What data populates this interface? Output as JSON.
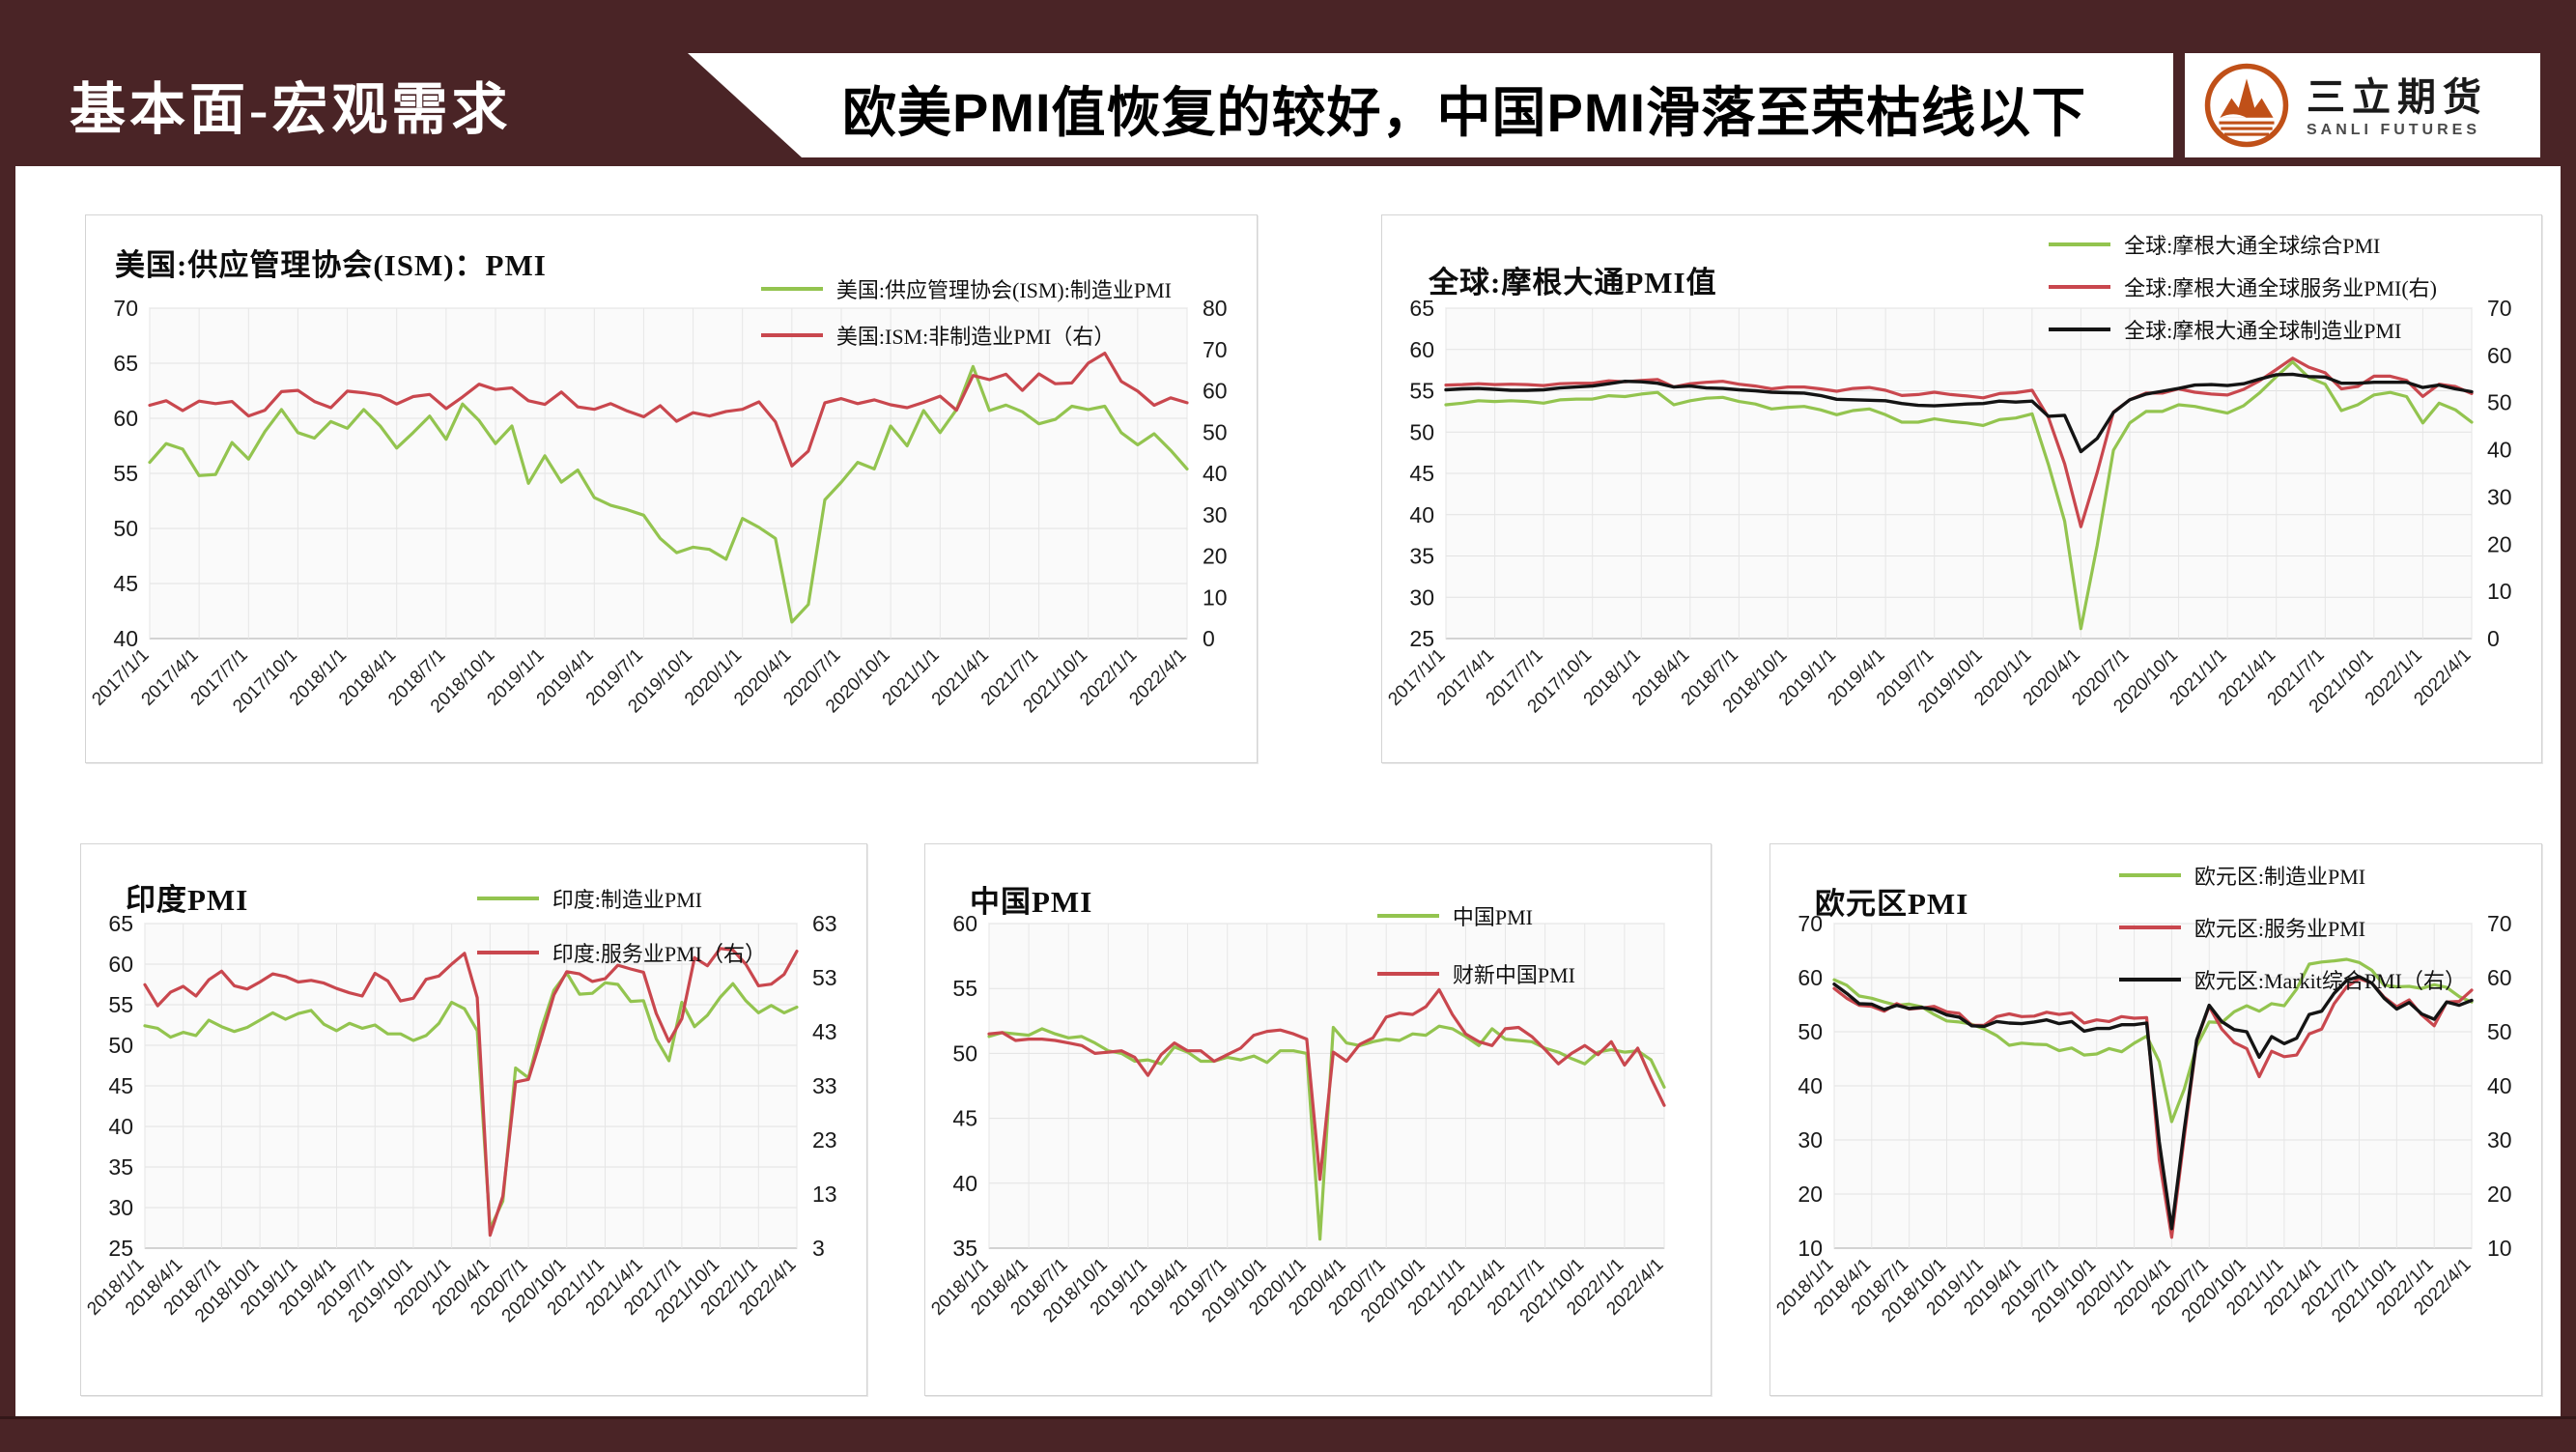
{
  "page": {
    "section_label": "基本面-宏观需求",
    "main_title": "欧美PMI值恢复的较好，中国PMI滑落至荣枯线以下",
    "logo": {
      "name_cn": "三立期货",
      "name_en": "SANLI FUTURES"
    },
    "colors": {
      "maroon": "#4a2426",
      "green": "#93c44f",
      "red": "#c9474e",
      "line_black": "#141414",
      "logo_orange": "#c05018"
    }
  },
  "chart_data": [
    {
      "type": "line",
      "title": "美国:供应管理协会(ISM)：PMI",
      "grid": true,
      "legend_position": "top-right",
      "left_axis": {
        "min": 40,
        "max": 70,
        "step": 5
      },
      "right_axis": {
        "min": 0,
        "max": 80,
        "step": 10
      },
      "x_ticks": [
        "2017/1/1",
        "2017/4/1",
        "2017/7/1",
        "2017/10/1",
        "2018/1/1",
        "2018/4/1",
        "2018/7/1",
        "2018/10/1",
        "2019/1/1",
        "2019/4/1",
        "2019/7/1",
        "2019/10/1",
        "2020/1/1",
        "2020/4/1",
        "2020/7/1",
        "2020/10/1",
        "2021/1/1",
        "2021/4/1",
        "2021/7/1",
        "2021/10/1",
        "2022/1/1",
        "2022/4/1"
      ],
      "series": [
        {
          "name": "美国:供应管理协会(ISM):制造业PMI",
          "color": "#93c44f",
          "axis": "left",
          "values": [
            56.0,
            57.7,
            57.2,
            54.8,
            54.9,
            57.8,
            56.3,
            58.8,
            60.8,
            58.7,
            58.2,
            59.7,
            59.1,
            60.8,
            59.3,
            57.3,
            58.7,
            60.2,
            58.1,
            61.3,
            59.8,
            57.7,
            59.3,
            54.1,
            56.6,
            54.2,
            55.3,
            52.8,
            52.1,
            51.7,
            51.2,
            49.1,
            47.8,
            48.3,
            48.1,
            47.2,
            50.9,
            50.1,
            49.1,
            41.5,
            43.1,
            52.6,
            54.2,
            56.0,
            55.4,
            59.3,
            57.5,
            60.7,
            58.7,
            60.8,
            64.7,
            60.7,
            61.2,
            60.6,
            59.5,
            59.9,
            61.1,
            60.8,
            61.1,
            58.7,
            57.6,
            58.6,
            57.1,
            55.4
          ]
        },
        {
          "name": "美国:ISM:非制造业PMI（右）",
          "color": "#c9474e",
          "axis": "right",
          "values": [
            56.5,
            57.6,
            55.2,
            57.5,
            56.9,
            57.4,
            53.9,
            55.3,
            59.8,
            60.1,
            57.4,
            55.9,
            59.9,
            59.5,
            58.8,
            56.8,
            58.6,
            59.1,
            55.7,
            58.5,
            61.6,
            60.3,
            60.7,
            57.6,
            56.7,
            59.7,
            56.1,
            55.5,
            56.9,
            55.1,
            53.7,
            56.4,
            52.6,
            54.7,
            53.9,
            55.0,
            55.5,
            57.3,
            52.5,
            41.8,
            45.4,
            57.1,
            58.1,
            56.9,
            57.8,
            56.6,
            55.9,
            57.2,
            58.7,
            55.3,
            63.7,
            62.7,
            64.0,
            60.1,
            64.1,
            61.7,
            61.9,
            66.7,
            69.1,
            62.3,
            59.9,
            56.5,
            58.3,
            57.1
          ]
        }
      ]
    },
    {
      "type": "line",
      "title": "全球:摩根大通PMI值",
      "grid": true,
      "legend_position": "top-right",
      "left_axis": {
        "min": 25,
        "max": 65,
        "step": 5
      },
      "right_axis": {
        "min": 0,
        "max": 70,
        "step": 10
      },
      "x_ticks": [
        "2017/1/1",
        "2017/4/1",
        "2017/7/1",
        "2017/10/1",
        "2018/1/1",
        "2018/4/1",
        "2018/7/1",
        "2018/10/1",
        "2019/1/1",
        "2019/4/1",
        "2019/7/1",
        "2019/10/1",
        "2020/1/1",
        "2020/4/1",
        "2020/7/1",
        "2020/10/1",
        "2021/1/1",
        "2021/4/1",
        "2021/7/1",
        "2021/10/1",
        "2022/1/1",
        "2022/4/1"
      ],
      "series": [
        {
          "name": "全球:摩根大通全球综合PMI",
          "color": "#93c44f",
          "axis": "left",
          "values": [
            53.3,
            53.5,
            53.8,
            53.7,
            53.8,
            53.7,
            53.5,
            53.9,
            54.0,
            54.0,
            54.4,
            54.3,
            54.6,
            54.8,
            53.3,
            53.8,
            54.1,
            54.2,
            53.7,
            53.4,
            52.8,
            53.0,
            53.1,
            52.7,
            52.1,
            52.6,
            52.8,
            52.1,
            51.2,
            51.2,
            51.6,
            51.3,
            51.1,
            50.8,
            51.5,
            51.7,
            52.2,
            46.1,
            39.2,
            26.2,
            36.3,
            47.8,
            51.1,
            52.5,
            52.5,
            53.3,
            53.1,
            52.7,
            52.3,
            53.2,
            54.8,
            56.7,
            58.5,
            56.6,
            55.8,
            52.6,
            53.3,
            54.5,
            54.8,
            54.3,
            51.1,
            53.5,
            52.7,
            51.2
          ]
        },
        {
          "name": "全球:摩根大通全球服务业PMI(右)",
          "color": "#c9474e",
          "axis": "right",
          "values": [
            53.7,
            53.8,
            54.0,
            53.8,
            53.9,
            53.8,
            53.6,
            54.0,
            54.1,
            54.1,
            54.6,
            54.4,
            54.7,
            54.9,
            53.3,
            54.0,
            54.3,
            54.5,
            53.9,
            53.5,
            52.9,
            53.3,
            53.3,
            52.9,
            52.4,
            53.0,
            53.2,
            52.6,
            51.5,
            51.7,
            52.2,
            51.7,
            51.4,
            51.0,
            51.9,
            52.1,
            52.6,
            46.9,
            37.0,
            23.7,
            35.2,
            48.0,
            50.6,
            52.0,
            52.0,
            52.9,
            52.2,
            51.8,
            51.6,
            52.8,
            54.7,
            57.0,
            59.4,
            57.5,
            56.3,
            52.9,
            53.4,
            55.6,
            55.6,
            54.7,
            51.3,
            53.9,
            53.4,
            51.9
          ]
        },
        {
          "name": "全球:摩根大通全球制造业PMI",
          "color": "#141414",
          "axis": "right",
          "values": [
            52.7,
            52.9,
            53.0,
            52.8,
            52.6,
            52.6,
            52.7,
            53.1,
            53.3,
            53.5,
            54.0,
            54.5,
            54.4,
            54.1,
            53.3,
            53.5,
            53.1,
            53.0,
            52.7,
            52.5,
            52.2,
            52.1,
            52.0,
            51.5,
            50.7,
            50.6,
            50.5,
            50.4,
            49.8,
            49.4,
            49.3,
            49.5,
            49.7,
            49.8,
            50.3,
            50.1,
            50.3,
            47.1,
            47.3,
            39.6,
            42.4,
            47.9,
            50.6,
            51.8,
            52.4,
            53.0,
            53.7,
            53.8,
            53.6,
            54.0,
            55.0,
            55.9,
            56.0,
            55.5,
            55.4,
            54.1,
            54.1,
            54.3,
            54.3,
            54.3,
            53.2,
            53.7,
            52.9,
            52.3
          ]
        }
      ]
    },
    {
      "type": "line",
      "title": "印度PMI",
      "grid": true,
      "legend_position": "top-right",
      "left_axis": {
        "min": 25,
        "max": 65,
        "step": 5
      },
      "right_axis": {
        "min": 3,
        "max": 63,
        "step": 10
      },
      "x_ticks": [
        "2018/1/1",
        "2018/4/1",
        "2018/7/1",
        "2018/10/1",
        "2019/1/1",
        "2019/4/1",
        "2019/7/1",
        "2019/10/1",
        "2020/1/1",
        "2020/4/1",
        "2020/7/1",
        "2020/10/1",
        "2021/1/1",
        "2021/4/1",
        "2021/7/1",
        "2021/10/1",
        "2022/1/1",
        "2022/4/1"
      ],
      "series": [
        {
          "name": "印度:制造业PMI",
          "color": "#93c44f",
          "axis": "left",
          "values": [
            52.4,
            52.1,
            51.0,
            51.6,
            51.2,
            53.1,
            52.3,
            51.7,
            52.2,
            53.1,
            54.0,
            53.2,
            53.9,
            54.3,
            52.6,
            51.8,
            52.7,
            52.1,
            52.5,
            51.4,
            51.4,
            50.6,
            51.2,
            52.7,
            55.3,
            54.5,
            51.8,
            27.4,
            30.8,
            47.2,
            46.0,
            52.0,
            56.8,
            58.9,
            56.3,
            56.4,
            57.7,
            57.5,
            55.4,
            55.5,
            50.8,
            48.1,
            55.3,
            52.3,
            53.7,
            55.9,
            57.6,
            55.5,
            54.0,
            54.9,
            54.0,
            54.7
          ]
        },
        {
          "name": "印度:服务业PMI（右）",
          "color": "#c9474e",
          "axis": "right",
          "values": [
            51.7,
            47.8,
            50.3,
            51.4,
            49.6,
            52.6,
            54.2,
            51.5,
            50.9,
            52.2,
            53.7,
            53.2,
            52.2,
            52.5,
            52.0,
            51.0,
            50.2,
            49.6,
            53.8,
            52.4,
            48.7,
            49.2,
            52.7,
            53.3,
            55.5,
            57.5,
            49.3,
            5.4,
            12.6,
            33.7,
            34.2,
            41.8,
            49.8,
            54.1,
            53.7,
            52.3,
            52.8,
            55.3,
            54.6,
            54.0,
            46.4,
            41.2,
            45.4,
            56.7,
            55.2,
            58.4,
            58.1,
            55.5,
            51.5,
            51.8,
            53.6,
            57.9
          ]
        }
      ]
    },
    {
      "type": "line",
      "title": "中国PMI",
      "grid": true,
      "legend_position": "top-right",
      "left_axis": {
        "min": 35,
        "max": 60,
        "step": 5
      },
      "right_axis": null,
      "x_ticks": [
        "2018/1/1",
        "2018/4/1",
        "2018/7/1",
        "2018/10/1",
        "2019/1/1",
        "2019/4/1",
        "2019/7/1",
        "2019/10/1",
        "2020/1/1",
        "2020/4/1",
        "2020/7/1",
        "2020/10/1",
        "2021/1/1",
        "2021/4/1",
        "2021/7/1",
        "2021/10/1",
        "2022/1/1",
        "2022/4/1"
      ],
      "series": [
        {
          "name": "中国PMI",
          "color": "#93c44f",
          "axis": "left",
          "values": [
            51.3,
            51.6,
            51.5,
            51.4,
            51.9,
            51.5,
            51.2,
            51.3,
            50.8,
            50.2,
            50.0,
            49.4,
            49.5,
            49.2,
            50.5,
            50.1,
            49.4,
            49.4,
            49.7,
            49.5,
            49.8,
            49.3,
            50.2,
            50.2,
            50.0,
            35.7,
            52.0,
            50.8,
            50.6,
            50.9,
            51.1,
            51.0,
            51.5,
            51.4,
            52.1,
            51.9,
            51.3,
            50.6,
            51.9,
            51.1,
            51.0,
            50.9,
            50.4,
            50.1,
            49.6,
            49.2,
            50.1,
            50.3,
            50.1,
            50.2,
            49.5,
            47.4
          ]
        },
        {
          "name": "财新中国PMI",
          "color": "#c9474e",
          "axis": "left",
          "values": [
            51.5,
            51.6,
            51.0,
            51.1,
            51.1,
            51.0,
            50.8,
            50.6,
            50.0,
            50.1,
            50.2,
            49.7,
            48.3,
            49.9,
            50.8,
            50.2,
            50.2,
            49.4,
            49.9,
            50.4,
            51.4,
            51.7,
            51.8,
            51.5,
            51.1,
            40.3,
            50.1,
            49.4,
            50.7,
            51.2,
            52.8,
            53.1,
            53.0,
            53.6,
            54.9,
            53.0,
            51.5,
            50.9,
            50.6,
            51.9,
            52.0,
            51.3,
            50.3,
            49.2,
            50.0,
            50.6,
            49.9,
            50.9,
            49.1,
            50.4,
            48.1,
            46.0
          ]
        }
      ]
    },
    {
      "type": "line",
      "title": "欧元区PMI",
      "grid": true,
      "legend_position": "top-right",
      "left_axis": {
        "min": 10,
        "max": 70,
        "step": 10
      },
      "right_axis": {
        "min": 10,
        "max": 70,
        "step": 10
      },
      "x_ticks": [
        "2018/1/1",
        "2018/4/1",
        "2018/7/1",
        "2018/10/1",
        "2019/1/1",
        "2019/4/1",
        "2019/7/1",
        "2019/10/1",
        "2020/1/1",
        "2020/4/1",
        "2020/7/1",
        "2020/10/1",
        "2021/1/1",
        "2021/4/1",
        "2021/7/1",
        "2021/10/1",
        "2022/1/1",
        "2022/4/1"
      ],
      "series": [
        {
          "name": "欧元区:制造业PMI",
          "color": "#93c44f",
          "axis": "left",
          "values": [
            59.6,
            58.6,
            56.6,
            56.2,
            55.5,
            54.9,
            55.1,
            54.6,
            53.2,
            52.0,
            51.8,
            51.4,
            50.5,
            49.3,
            47.5,
            47.9,
            47.7,
            47.6,
            46.5,
            47.0,
            45.7,
            45.9,
            46.9,
            46.3,
            47.9,
            49.2,
            44.5,
            33.4,
            39.4,
            47.4,
            51.8,
            51.7,
            53.7,
            54.8,
            53.8,
            55.2,
            54.8,
            57.9,
            62.5,
            62.9,
            63.1,
            63.4,
            62.8,
            61.4,
            58.6,
            58.3,
            58.4,
            58.0,
            58.7,
            58.2,
            56.5,
            55.5
          ]
        },
        {
          "name": "欧元区:服务业PMI",
          "color": "#c9474e",
          "axis": "left",
          "values": [
            58.0,
            56.2,
            54.9,
            54.7,
            53.8,
            55.2,
            54.2,
            54.4,
            54.7,
            53.7,
            53.4,
            51.2,
            51.2,
            52.8,
            53.3,
            52.8,
            52.9,
            53.6,
            53.2,
            53.5,
            51.6,
            52.2,
            51.9,
            52.8,
            52.5,
            52.6,
            26.4,
            12.0,
            30.5,
            48.3,
            54.7,
            50.5,
            48.0,
            46.9,
            41.7,
            46.4,
            45.4,
            45.7,
            49.6,
            50.5,
            55.2,
            58.3,
            59.8,
            59.0,
            56.4,
            54.6,
            55.9,
            53.1,
            51.1,
            55.5,
            55.6,
            57.7
          ]
        },
        {
          "name": "欧元区:Markit综合PMI（右）",
          "color": "#141414",
          "axis": "right",
          "values": [
            58.8,
            57.1,
            55.2,
            55.1,
            54.1,
            54.9,
            54.3,
            54.5,
            54.1,
            53.1,
            52.7,
            51.1,
            51.0,
            51.9,
            51.6,
            51.5,
            51.8,
            52.2,
            51.5,
            51.9,
            50.1,
            50.6,
            50.6,
            51.3,
            51.3,
            51.6,
            29.7,
            13.6,
            31.9,
            48.5,
            54.9,
            51.9,
            50.4,
            50.0,
            45.3,
            49.1,
            47.8,
            48.8,
            53.2,
            53.8,
            57.1,
            59.5,
            60.2,
            59.0,
            56.2,
            54.2,
            55.4,
            53.3,
            52.3,
            55.5,
            54.9,
            55.8
          ]
        }
      ]
    }
  ]
}
